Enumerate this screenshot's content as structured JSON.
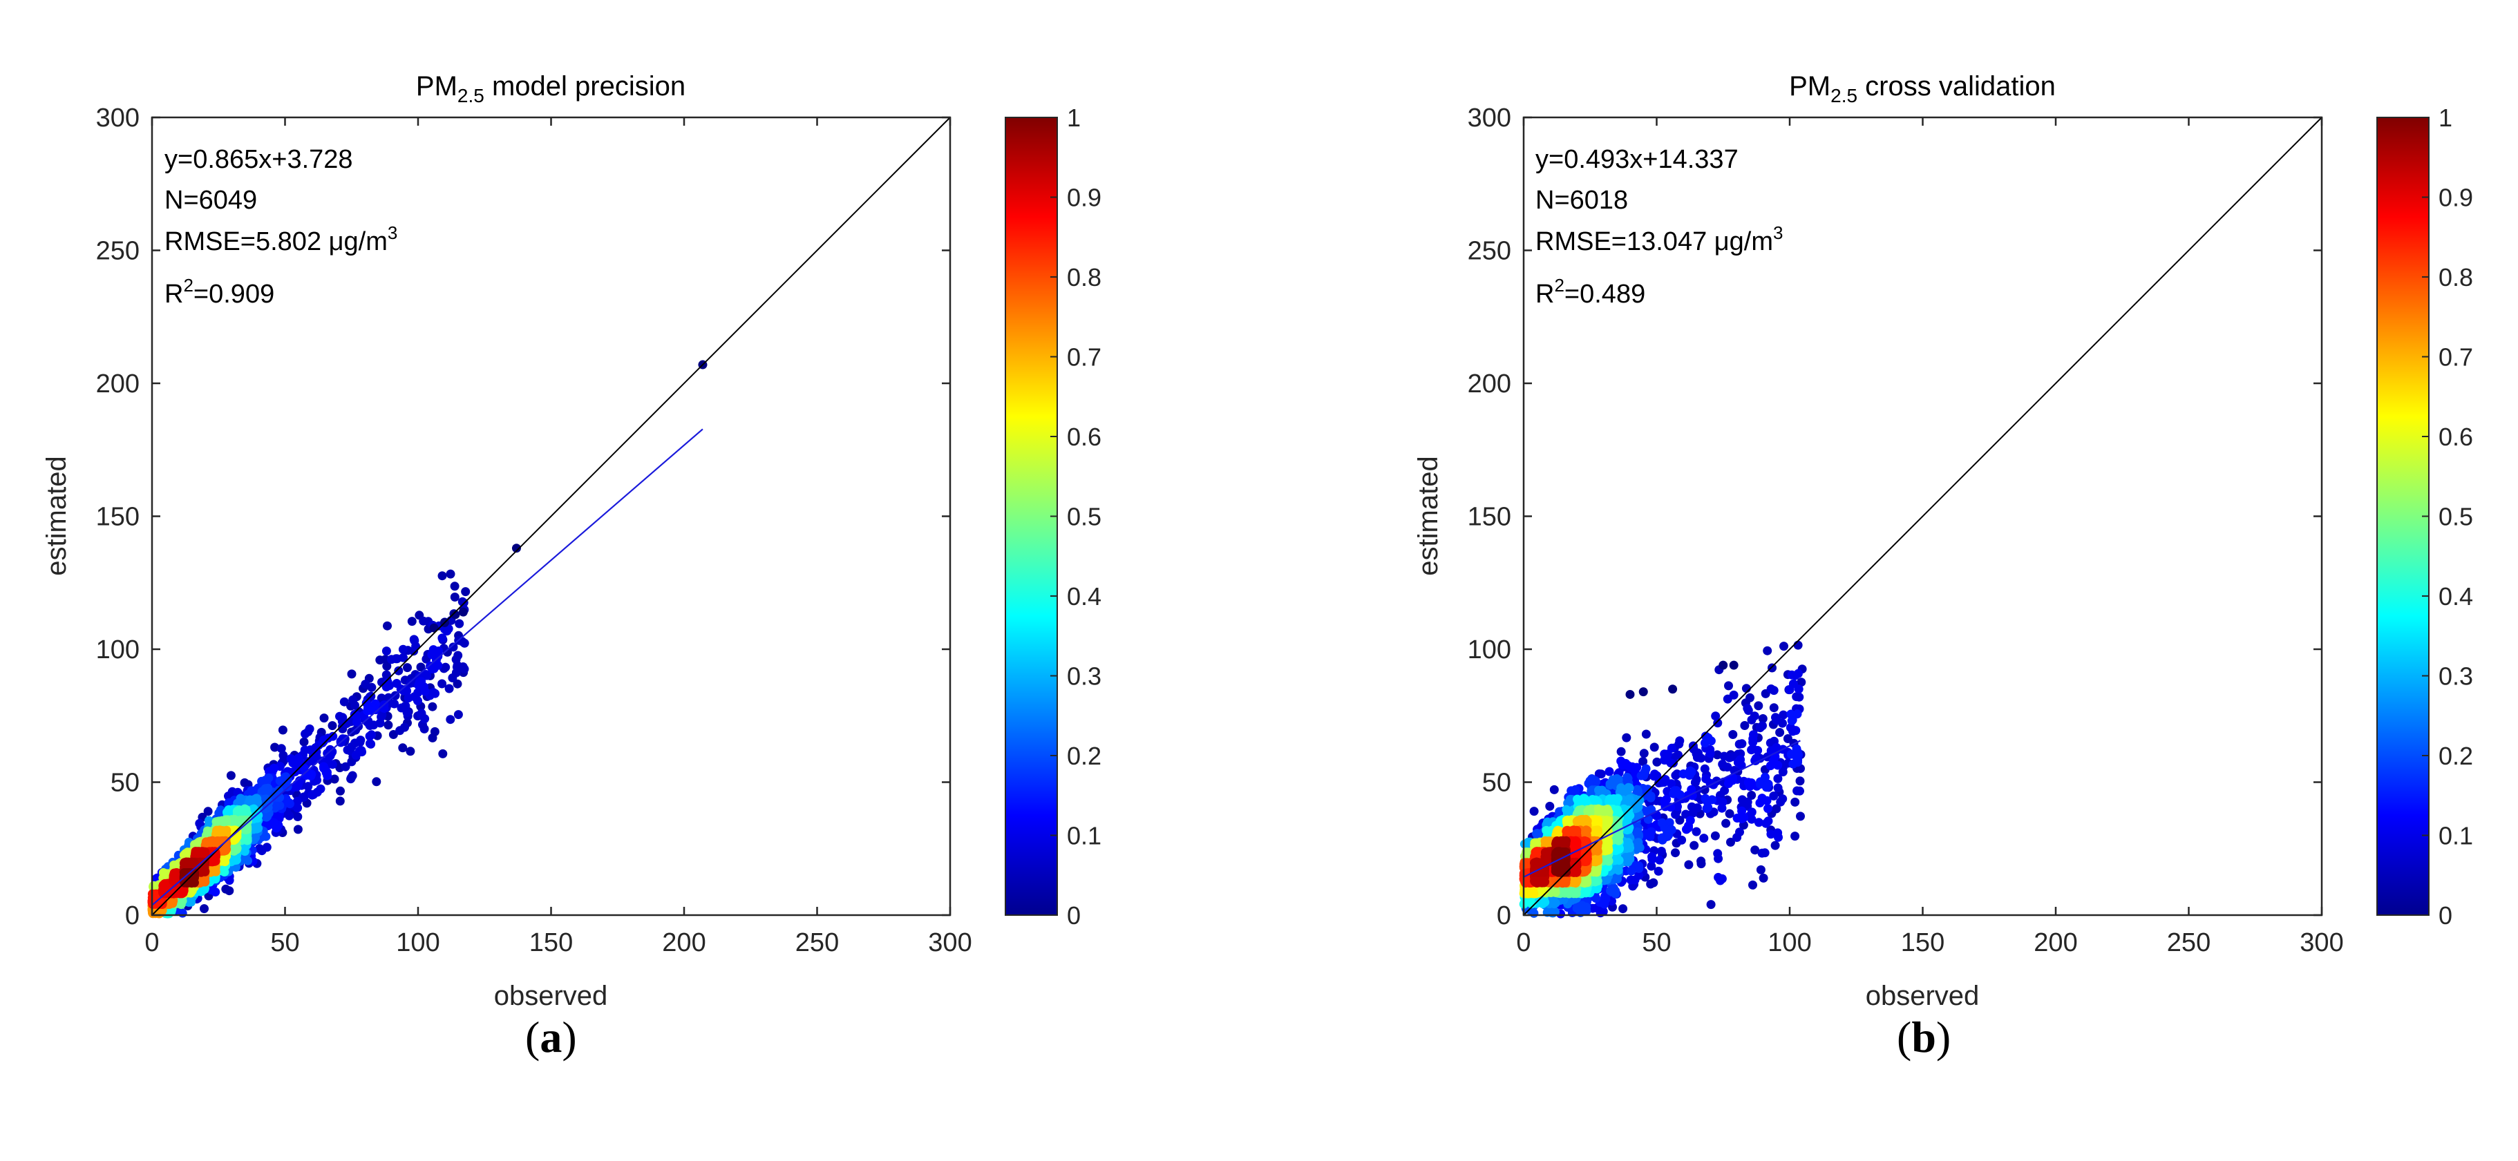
{
  "figure": {
    "labels": [
      "a",
      "b"
    ]
  },
  "chart_data": [
    {
      "type": "scatter",
      "title": {
        "prefix": "PM",
        "sub": "2.5",
        "rest": " model precision"
      },
      "xlabel": "observed",
      "ylabel": "estimated",
      "xlim": [
        0,
        300
      ],
      "ylim": [
        0,
        300
      ],
      "xticks": [
        0,
        50,
        100,
        150,
        200,
        250,
        300
      ],
      "yticks": [
        0,
        50,
        100,
        150,
        200,
        250,
        300
      ],
      "stats": {
        "equation": "y=0.865x+3.728",
        "n": "N=6049",
        "rmse_text": "RMSE=5.802 μg/m",
        "rmse_sup": "3",
        "r2_label": "R",
        "r2_sup": "2",
        "r2_value": "=0.909"
      },
      "fit_line": {
        "slope": 0.865,
        "intercept": 3.728,
        "x_range": [
          0,
          207
        ]
      },
      "identity_line": {
        "x_range": [
          0,
          300
        ]
      },
      "cloud": {
        "n": 6049,
        "x_mean": 17,
        "x_sd": 14,
        "slope": 0.865,
        "intercept": 3.728,
        "noise_sd": 5.5,
        "x_max": 118,
        "seed": 11
      },
      "outliers": [
        [
          137,
          138
        ],
        [
          207,
          207
        ],
        [
          106,
          108
        ],
        [
          110,
          110
        ],
        [
          114,
          113
        ],
        [
          117,
          114
        ]
      ],
      "colorbar": {
        "min": 0,
        "max": 1,
        "ticks": [
          "0",
          "0.1",
          "0.2",
          "0.3",
          "0.4",
          "0.5",
          "0.6",
          "0.7",
          "0.8",
          "0.9",
          "1"
        ]
      },
      "colors": {
        "fit": "#1a1adb",
        "identity": "#000000"
      }
    },
    {
      "type": "scatter",
      "title": {
        "prefix": "PM",
        "sub": "2.5",
        "rest": " cross validation"
      },
      "xlabel": "observed",
      "ylabel": "estimated",
      "xlim": [
        0,
        300
      ],
      "ylim": [
        0,
        300
      ],
      "xticks": [
        0,
        50,
        100,
        150,
        200,
        250,
        300
      ],
      "yticks": [
        0,
        50,
        100,
        150,
        200,
        250,
        300
      ],
      "stats": {
        "equation": "y=0.493x+14.337",
        "n": "N=6018",
        "rmse_text": "RMSE=13.047 μg/m",
        "rmse_sup": "3",
        "r2_label": "R",
        "r2_sup": "2",
        "r2_value": "=0.489"
      },
      "fit_line": {
        "slope": 0.493,
        "intercept": 14.337,
        "x_range": [
          0,
          104
        ]
      },
      "identity_line": {
        "x_range": [
          0,
          300
        ]
      },
      "cloud": {
        "n": 6018,
        "x_mean": 17,
        "x_sd": 14,
        "slope": 0.493,
        "intercept": 14.337,
        "noise_sd": 9.5,
        "x_max": 105,
        "seed": 23
      },
      "outliers": [
        [
          75,
          94
        ],
        [
          79,
          94
        ],
        [
          45,
          84
        ],
        [
          40,
          83
        ],
        [
          56,
          85
        ]
      ],
      "colorbar": {
        "min": 0,
        "max": 1,
        "ticks": [
          "0",
          "0.1",
          "0.2",
          "0.3",
          "0.4",
          "0.5",
          "0.6",
          "0.7",
          "0.8",
          "0.9",
          "1"
        ]
      },
      "colors": {
        "fit": "#1a1adb",
        "identity": "#000000"
      }
    }
  ]
}
